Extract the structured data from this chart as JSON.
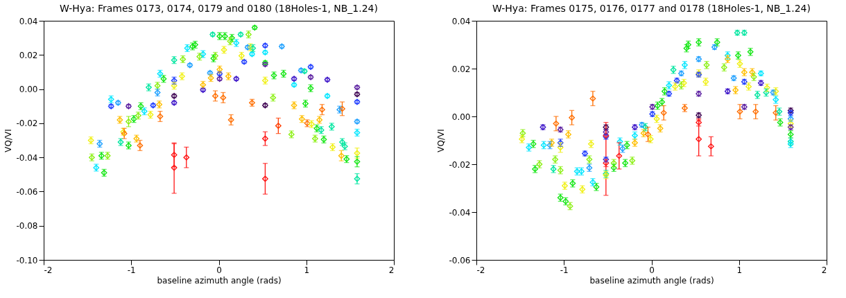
{
  "chart_data": [
    {
      "type": "scatter",
      "title": "W-Hya: Frames 0173, 0174, 0179 and 0180 (18Holes-1, NB_1.24)",
      "xlabel": "baseline azimuth angle (rads)",
      "ylabel": "VQ/VI",
      "marker": "diamond",
      "xlim": [
        -2,
        2
      ],
      "xticks": [
        -2,
        -1,
        0,
        1,
        2
      ],
      "ylim": [
        -0.1,
        0.04
      ],
      "yticks": [
        {
          "value": -0.1,
          "label": "-0.10"
        },
        {
          "value": -0.08,
          "label": "-0.08"
        },
        {
          "value": -0.06,
          "label": "-0.06"
        },
        {
          "value": -0.04,
          "label": "-0.04"
        },
        {
          "value": -0.02,
          "label": "-0.02"
        },
        {
          "value": 0,
          "label": "0.00"
        },
        {
          "value": 0.02,
          "label": "0.02"
        },
        {
          "value": 0.04,
          "label": "0.04"
        }
      ],
      "series": [
        {
          "x": [
            -1.46,
            -1.45,
            -1.4,
            -1.36,
            -1.34,
            -1.31,
            -1.27,
            -1.23,
            -1.23,
            -1.15,
            -1.13,
            -1.12,
            -1.09,
            -1.08,
            -1.03,
            -1.03,
            -1.03,
            -0.97,
            -0.94,
            -0.92,
            -0.89,
            -0.9,
            -0.85,
            -0.78,
            -0.75,
            -0.8,
            -0.7,
            -0.7,
            -0.68,
            -0.67,
            -0.67,
            -0.63,
            -0.51,
            -0.51,
            -0.51,
            -0.51,
            -0.51,
            -0.51,
            -0.37,
            -0.51,
            -0.41,
            -0.42,
            -0.33,
            -0.36,
            -0.3,
            -0.27,
            -0.22,
            -0.18,
            -0.18,
            -0.18,
            -0.1,
            -0.09,
            -0.07,
            -0.06,
            -0.04,
            0.01,
            0.07,
            0.13,
            0.15,
            0.2,
            0.25,
            0.34,
            0.41,
            -0.04,
            0.06,
            0.26,
            0.29,
            0.33,
            0.36,
            0.39,
            0.38,
            0.53,
            0.53,
            0.53,
            0.53,
            0.72,
            0.01,
            0.01,
            0.01,
            0.11,
            0.2,
            0.05,
            0.14,
            0.38,
            0.53,
            0.53,
            0.63,
            0.74,
            0.62,
            0.53,
            0.53,
            0.68,
            0.83,
            0.86,
            0.86,
            0.86,
            0.94,
            0.98,
            1.05,
            1.05,
            1.05,
            0.99,
            0.95,
            1.01,
            1.06,
            1.18,
            1.15,
            1.12,
            1.17,
            1.1,
            1.2,
            1.24,
            1.24,
            1.29,
            1.3,
            1.38,
            1.4,
            1.41,
            1.41,
            1.44,
            1.46,
            1.58,
            1.58,
            1.58,
            1.58,
            1.58,
            1.58,
            1.58,
            1.58
          ],
          "values": [
            -0.03,
            -0.04,
            -0.046,
            -0.032,
            -0.039,
            -0.049,
            -0.039,
            -0.006,
            -0.01,
            -0.008,
            -0.018,
            -0.031,
            -0.025,
            -0.026,
            -0.01,
            -0.019,
            -0.033,
            -0.0175,
            -0.029,
            -0.0155,
            -0.01,
            -0.033,
            -0.013,
            -0.015,
            -0.0095,
            0.001,
            0.002,
            -0.002,
            -0.009,
            -0.016,
            0.009,
            0.006,
            0.005,
            0.002,
            -0.004,
            -0.008,
            -0.0385,
            -0.046,
            -0.04,
            0.017,
            0.0175,
            0.0075,
            0.014,
            0.024,
            0.025,
            0.026,
            0.019,
            0.0205,
            -0.0005,
            0.0025,
            0.0095,
            0.0065,
            0.032,
            0.018,
            -0.004,
            0.031,
            0.031,
            0.028,
            0.03,
            0.027,
            0.032,
            0.032,
            0.036,
            0.0195,
            0.023,
            0.0195,
            0.016,
            0.0245,
            0.0245,
            0.024,
            0.0205,
            0.0255,
            0.0215,
            0.0155,
            0.0145,
            0.025,
            0.009,
            0.0115,
            0.006,
            0.0075,
            0.006,
            -0.005,
            -0.018,
            -0.008,
            -0.0095,
            0.005,
            0.008,
            0.009,
            -0.005,
            -0.029,
            -0.0525,
            -0.0215,
            -0.0265,
            0.006,
            0.0025,
            -0.0095,
            0.011,
            0.0105,
            0.007,
            0.013,
            0.0005,
            -0.0085,
            -0.0175,
            -0.02,
            -0.0205,
            -0.012,
            -0.018,
            -0.023,
            -0.024,
            -0.029,
            -0.0295,
            0.0055,
            -0.004,
            -0.022,
            -0.034,
            -0.012,
            -0.039,
            -0.0115,
            -0.031,
            -0.0335,
            -0.041,
            0.001,
            -0.003,
            -0.0075,
            -0.019,
            -0.0255,
            -0.0375,
            -0.0425,
            -0.0525
          ],
          "errors": [
            0.002,
            0.002,
            0.002,
            0.002,
            0.002,
            0.002,
            0.002,
            0.002,
            0.001,
            0.001,
            0.002,
            0.002,
            0.002,
            0.003,
            0.001,
            0.003,
            0.002,
            0.002,
            0.002,
            0.002,
            0.002,
            0.003,
            0.002,
            0.002,
            0.001,
            0.002,
            0.002,
            0.002,
            0.002,
            0.003,
            0.002,
            0.002,
            0.002,
            0.002,
            0.001,
            0.001,
            0.007,
            [
              -0.061,
              -0.032
            ],
            0.006,
            0.002,
            0.002,
            0.002,
            0.001,
            0.002,
            0.002,
            0.002,
            0.002,
            0.002,
            0.001,
            0.002,
            0.001,
            0.002,
            0.001,
            0.002,
            0.003,
            0.002,
            0.002,
            0.002,
            0.002,
            0.002,
            0.001,
            0.002,
            0.001,
            0.002,
            0.002,
            0.002,
            0.001,
            0.001,
            0.002,
            0.002,
            0.001,
            0.001,
            0.001,
            0.001,
            0.001,
            0.001,
            0.001,
            0.002,
            0.001,
            0.002,
            0.001,
            0.003,
            0.003,
            0.002,
            0.001,
            0.002,
            0.002,
            0.002,
            0.002,
            0.004,
            0.009,
            0.0045,
            0.002,
            0.001,
            0.001,
            0.002,
            0.001,
            0.001,
            0.001,
            0.001,
            0.002,
            0.002,
            0.002,
            0.002,
            0.002,
            0.003,
            0.002,
            0.002,
            0.002,
            0.002,
            0.002,
            0.001,
            0.001,
            0.002,
            0.002,
            0.002,
            0.003,
            0.004,
            0.002,
            0.002,
            0.002,
            0.001,
            0.001,
            0.001,
            0.001,
            0.002,
            0.003,
            0.003,
            0.003
          ],
          "colors": [
            "#f0f014",
            "#8cf014",
            "#00e6ff",
            "#1ea0ff",
            "#14e614",
            "#14e614",
            "#8cf014",
            "#00e6ff",
            "#1e3cff",
            "#1ea0ff",
            "#ffbe00",
            "#00e6a0",
            "#f0f014",
            "#ff6e00",
            "#5a1ea0",
            "#8cf014",
            "#14e614",
            "#14e614",
            "#ffbe00",
            "#8cf014",
            "#14e614",
            "#ff6e00",
            "#00e6ff",
            "#f0f014",
            "#1e3cff",
            "#00e6a0",
            "#8cf014",
            "#1ea0ff",
            "#ffbe00",
            "#ff6e00",
            "#00e6ff",
            "#14e614",
            "#1e3cff",
            "#f0f014",
            "#3c0050",
            "#3c14c8",
            "#ff1414",
            "#ff1414",
            "#ff1414",
            "#00e6a0",
            "#8cf014",
            "#f0f014",
            "#1ea0ff",
            "#00e6ff",
            "#14e614",
            "#14e614",
            "#8cf014",
            "#00e6ff",
            "#3c14c8",
            "#ffbe00",
            "#1ea0ff",
            "#ffbe00",
            "#00e6a0",
            "#14e614",
            "#ff6e00",
            "#14e614",
            "#14e614",
            "#8cf014",
            "#14e614",
            "#00e6ff",
            "#00e6a0",
            "#8cf014",
            "#14e614",
            "#8cf014",
            "#f0f014",
            "#f0f014",
            "#1e3cff",
            "#1ea0ff",
            "#f0f014",
            "#00e6a0",
            "#00e6ff",
            "#1e3cff",
            "#00e6ff",
            "#14e614",
            "#5a1ea0",
            "#1ea0ff",
            "#1e3cff",
            "#ffbe00",
            "#5a1ea0",
            "#ffbe00",
            "#3c14c8",
            "#ff6e00",
            "#ff6e00",
            "#ff6e00",
            "#3c0050",
            "#f0f014",
            "#14e614",
            "#14e614",
            "#8cf014",
            "#ff1414",
            "#ff1414",
            "#ff3c00",
            "#8cf014",
            "#3c14c8",
            "#00e6ff",
            "#ffbe00",
            "#1ea0ff",
            "#00e6a0",
            "#5a1ea0",
            "#1e3cff",
            "#14e614",
            "#14e614",
            "#ffbe00",
            "#ff6e00",
            "#f0f014",
            "#ff6e00",
            "#ffbe00",
            "#14e614",
            "#00e6a0",
            "#8cf014",
            "#14e614",
            "#3c14c8",
            "#00e6ff",
            "#00e6a0",
            "#f0f014",
            "#1ea0ff",
            "#ffbe00",
            "#ff6e00",
            "#00e6a0",
            "#00e6a0",
            "#14e614",
            "#5a1ea0",
            "#3c0050",
            "#1e3cff",
            "#1ea0ff",
            "#00e6ff",
            "#f0f014",
            "#14e614",
            "#00e6a0"
          ]
        }
      ]
    },
    {
      "type": "scatter",
      "title": "W-Hya: Frames 0175, 0176, 0177 and 0178 (18Holes-1, NB_1.24)",
      "xlabel": "baseline azimuth angle (rads)",
      "ylabel": "VQ/VI",
      "marker": "diamond",
      "xlim": [
        -2,
        2
      ],
      "xticks": [
        -2,
        -1,
        0,
        1,
        2
      ],
      "ylim": [
        -0.06,
        0.04
      ],
      "yticks": [
        {
          "value": -0.06,
          "label": "-0.06"
        },
        {
          "value": -0.04,
          "label": "-0.04"
        },
        {
          "value": -0.02,
          "label": "-0.02"
        },
        {
          "value": 0,
          "label": "0.00"
        },
        {
          "value": 0.02,
          "label": "0.02"
        },
        {
          "value": 0.04,
          "label": "0.04"
        }
      ],
      "series": [
        {
          "x": [
            -1.47,
            -1.48,
            -1.4,
            -1.35,
            -1.33,
            -1.28,
            -1.24,
            -1.23,
            -1.16,
            -1.14,
            -1.09,
            -1.1,
            -1.12,
            -1.04,
            -1.04,
            -1.04,
            -1.04,
            -1.04,
            -0.99,
            -0.98,
            -0.93,
            -0.95,
            -0.91,
            -0.9,
            -0.85,
            -0.8,
            -0.79,
            -0.76,
            -0.71,
            -0.71,
            -0.69,
            -0.67,
            -0.67,
            -0.63,
            -0.52,
            -0.52,
            -0.52,
            -0.52,
            -0.52,
            -0.52,
            -0.52,
            -0.52,
            -0.37,
            -0.43,
            -0.43,
            -0.36,
            -0.33,
            -0.3,
            -0.28,
            -0.22,
            -0.19,
            -0.19,
            -0.19,
            -0.11,
            -0.07,
            -0.09,
            -0.04,
            -0.01,
            0.01,
            0.01,
            0.07,
            0.06,
            0.1,
            0.12,
            0.14,
            0.15,
            0.2,
            0.2,
            0.27,
            0.29,
            0.25,
            0.34,
            0.34,
            0.37,
            0.38,
            0.38,
            0.4,
            0.42,
            0.54,
            0.54,
            0.54,
            0.54,
            0.54,
            0.54,
            0.54,
            0.54,
            0.68,
            0.63,
            0.62,
            0.72,
            0.75,
            0.83,
            0.87,
            0.87,
            0.87,
            0.94,
            0.96,
            0.98,
            1.06,
            0.99,
            1.01,
            1.01,
            1.06,
            1.06,
            1.06,
            1.13,
            1.11,
            1.15,
            1.17,
            1.19,
            1.21,
            1.25,
            1.25,
            1.32,
            1.31,
            1.39,
            1.42,
            1.42,
            1.42,
            1.46,
            1.47,
            1.59,
            1.59,
            1.59,
            1.59,
            1.59,
            1.59,
            1.59,
            1.59
          ],
          "values": [
            -0.007,
            -0.0095,
            -0.013,
            -0.0115,
            -0.022,
            -0.02,
            -0.0045,
            -0.012,
            -0.012,
            -0.011,
            -0.003,
            -0.018,
            -0.022,
            -0.0055,
            -0.011,
            -0.013,
            -0.0225,
            -0.034,
            -0.029,
            -0.0355,
            -0.0375,
            -0.0075,
            -0.0005,
            -0.028,
            -0.023,
            -0.023,
            -0.0305,
            -0.0155,
            -0.018,
            -0.0215,
            -0.0115,
            0.0075,
            -0.0275,
            -0.0295,
            -0.0045,
            -0.0065,
            -0.0085,
            -0.008,
            -0.018,
            -0.0195,
            -0.024,
            -0.0245,
            -0.0165,
            -0.0195,
            -0.0215,
            -0.0105,
            -0.0135,
            -0.0195,
            -0.012,
            -0.0185,
            -0.0045,
            -0.008,
            -0.011,
            -0.0035,
            -0.0045,
            -0.007,
            -0.0075,
            -0.0095,
            0.004,
            0.001,
            0.0045,
            -0.001,
            -0.005,
            0.006,
            0.0015,
            0.0105,
            0.0095,
            0.013,
            0.0125,
            0.015,
            0.0195,
            0.018,
            0.013,
            0.014,
            0.0215,
            0.0035,
            0.0285,
            0.03,
            0.031,
            0.024,
            0.018,
            0.0175,
            0.0095,
            0.0005,
            -0.0025,
            -0.0095,
            -0.0125,
            0.0215,
            0.0145,
            0.029,
            0.031,
            0.0205,
            0.0255,
            0.024,
            0.0105,
            0.016,
            0.011,
            0.035,
            0.035,
            0.0255,
            0.022,
            0.002,
            0.004,
            0.0145,
            0.0185,
            0.027,
            0.0125,
            0.0185,
            0.0165,
            0.002,
            0.009,
            0.018,
            0.014,
            0.012,
            0.01,
            0.01,
            0.0105,
            0.007,
            0.0015,
            0.002,
            -0.0025,
            0.0025,
            0.0015,
            -0.001,
            -0.003,
            -0.0045,
            -0.0075,
            -0.0105,
            -0.0115
          ],
          "errors": [
            0.0015,
            0.0015,
            0.0015,
            0.0015,
            0.0015,
            0.0015,
            0.001,
            0.0015,
            0.0015,
            0.0015,
            0.003,
            0.0015,
            0.0015,
            0.001,
            0.0015,
            0.002,
            0.0015,
            0.0015,
            0.0015,
            0.0015,
            0.0015,
            0.0015,
            0.003,
            0.0015,
            0.0015,
            0.0015,
            0.0015,
            0.001,
            0.0015,
            0.0015,
            0.0015,
            0.003,
            0.0015,
            0.0015,
            0.001,
            0.001,
            0.001,
            [
              -0.033,
              -0.0025
            ],
            0.001,
            0.0015,
            0.0015,
            0.0015,
            0.0055,
            0.0015,
            0.0015,
            0.0015,
            0.0015,
            0.0015,
            0.0015,
            0.0015,
            0.001,
            0.0015,
            0.0015,
            0.001,
            0.0015,
            0.0015,
            0.003,
            0.0015,
            0.001,
            0.001,
            0.0015,
            0.0015,
            0.0015,
            0.0015,
            0.003,
            0.0015,
            0.001,
            0.0015,
            0.0015,
            0.001,
            0.0015,
            0.001,
            0.0015,
            0.0015,
            0.0015,
            0.0015,
            0.0015,
            0.0015,
            0.0015,
            0.001,
            0.0015,
            0.001,
            0.001,
            0.001,
            0.0015,
            [
              -0.0165,
              -0.0015
            ],
            0.004,
            0.0015,
            0.0015,
            0.001,
            0.0015,
            0.0015,
            0.0015,
            0.0015,
            0.001,
            0.001,
            0.0015,
            0.001,
            0.001,
            0.0015,
            0.0015,
            0.003,
            0.001,
            0.001,
            0.0015,
            0.0015,
            0.0015,
            0.0015,
            0.0015,
            0.003,
            0.0015,
            0.001,
            0.001,
            0.0015,
            0.0015,
            0.001,
            0.0015,
            0.0015,
            0.003,
            0.0015,
            0.0015,
            0.001,
            0.001,
            0.001,
            0.0015,
            0.001,
            0.0015,
            0.0015,
            0.0015
          ],
          "colors": [
            "#8cf014",
            "#f0f014",
            "#00e6ff",
            "#14e614",
            "#14e614",
            "#8cf014",
            "#3c14c8",
            "#00e6ff",
            "#1ea0ff",
            "#ffbe00",
            "#ff6e00",
            "#8cf014",
            "#00e6a0",
            "#5a1ea0",
            "#1e3cff",
            "#f0f014",
            "#8cf014",
            "#14e614",
            "#f0f014",
            "#14e614",
            "#8cf014",
            "#ffbe00",
            "#ff6e00",
            "#14e614",
            "#00e6ff",
            "#00e6ff",
            "#f0f014",
            "#1e3cff",
            "#8cf014",
            "#1ea0ff",
            "#f0f014",
            "#ff6e00",
            "#00e6ff",
            "#14e614",
            "#3c0050",
            "#5a1ea0",
            "#1e3cff",
            "#ff1414",
            "#1e3cff",
            "#ff1414",
            "#00e6a0",
            "#f0f014",
            "#ff1414",
            "#8cf014",
            "#14e614",
            "#00e6ff",
            "#1ea0ff",
            "#14e614",
            "#14e614",
            "#8cf014",
            "#3c14c8",
            "#00e6ff",
            "#ffbe00",
            "#1ea0ff",
            "#00e6a0",
            "#ffbe00",
            "#ff6e00",
            "#f0f014",
            "#5a1ea0",
            "#1e3cff",
            "#14e614",
            "#f0f014",
            "#ffbe00",
            "#14e614",
            "#ff6e00",
            "#14e614",
            "#1e3cff",
            "#00e6ff",
            "#f0f014",
            "#1e3cff",
            "#00e6a0",
            "#1ea0ff",
            "#8cf014",
            "#f0f014",
            "#00e6ff",
            "#ff6e00",
            "#14e614",
            "#14e614",
            "#14e614",
            "#1ea0ff",
            "#f0f014",
            "#1e3cff",
            "#5a1ea0",
            "#3c0050",
            "#ff1414",
            "#ff1414",
            "#ff1414",
            "#8cf014",
            "#f0f014",
            "#1ea0ff",
            "#14e614",
            "#8cf014",
            "#00e6ff",
            "#ffbe00",
            "#3c14c8",
            "#1ea0ff",
            "#ffbe00",
            "#00e6a0",
            "#00e6a0",
            "#14e614",
            "#f0f014",
            "#ff6e00",
            "#5a1ea0",
            "#1e3cff",
            "#ffbe00",
            "#14e614",
            "#f0f014",
            "#ffbe00",
            "#8cf014",
            "#ff6e00",
            "#00e6a0",
            "#00e6ff",
            "#3c14c8",
            "#f0f014",
            "#00e6a0",
            "#1ea0ff",
            "#f0f014",
            "#00e6ff",
            "#ff6e00",
            "#00e6a0",
            "#14e614",
            "#3c0050",
            "#1e3cff",
            "#1ea0ff",
            "#f0f014",
            "#5a1ea0",
            "#14e614",
            "#00e6a0",
            "#00e6ff"
          ]
        }
      ]
    }
  ]
}
